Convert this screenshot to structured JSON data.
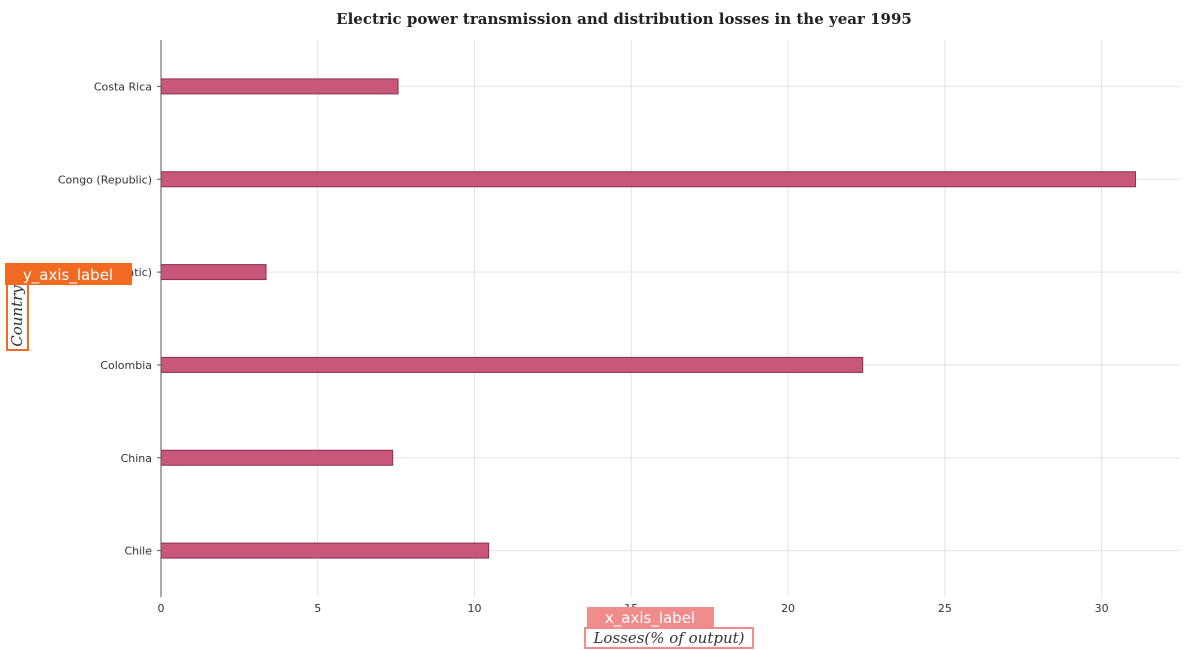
{
  "chart_data": {
    "type": "bar",
    "orientation": "horizontal",
    "title": "Electric power transmission and distribution losses in the year 1995",
    "xlabel": "Losses(% of output)",
    "ylabel": "Country",
    "xlim": [
      0,
      32.5
    ],
    "xticks": [
      0,
      5,
      10,
      15,
      20,
      25,
      30
    ],
    "categories": [
      "Chile",
      "China",
      "Colombia",
      "Congo (Democratic)",
      "Congo (Republic)",
      "Costa Rica"
    ],
    "values": [
      10.45,
      7.39,
      22.38,
      3.35,
      31.08,
      7.56
    ],
    "grid": true,
    "bar_color": "#c9577a",
    "bar_edge_color": "#8c2f4f",
    "axis_tags": {
      "x": "x_axis_label",
      "y": "y_axis_label"
    },
    "tag_colors": {
      "x": "#f08c8c",
      "y": "#f26a21"
    }
  }
}
